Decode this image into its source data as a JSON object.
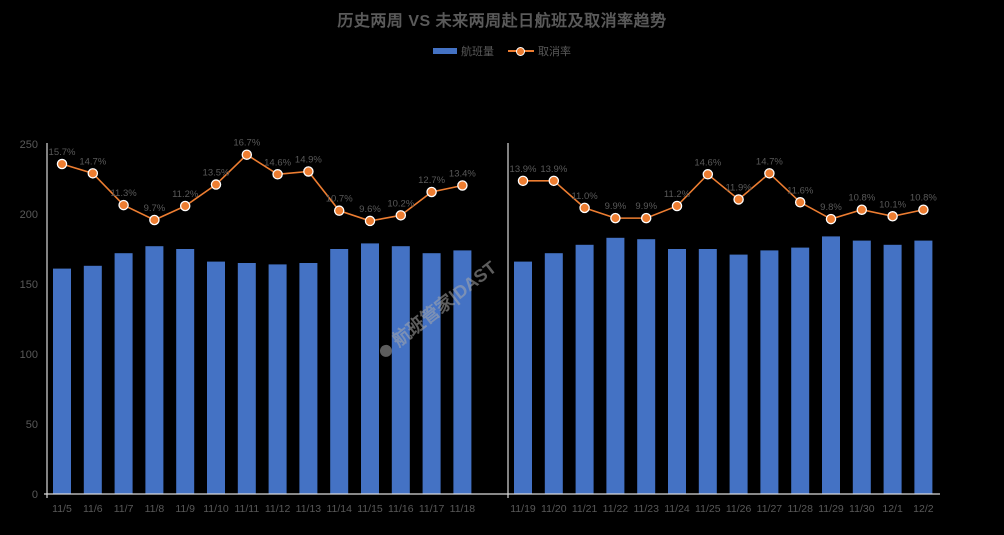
{
  "chart_data": {
    "type": "bar+line",
    "title": "历史两周 VS 未来两周赴日航班及取消率趋势",
    "legend": {
      "position": "top",
      "entries": [
        "航班量",
        "取消率"
      ]
    },
    "colors": {
      "bar": "#4472c4",
      "line": "#ed7d31",
      "text": "#595959",
      "axis": "#d9d9d9"
    },
    "y_axis": {
      "min": 0,
      "max": 250,
      "ticks": [
        0,
        50,
        100,
        150,
        200,
        250
      ]
    },
    "grid": false,
    "panels": [
      {
        "name": "历史两周",
        "categories": [
          "11/5",
          "11/6",
          "11/7",
          "11/8",
          "11/9",
          "11/10",
          "11/11",
          "11/12",
          "11/13",
          "11/14",
          "11/15",
          "11/16",
          "11/17",
          "11/18"
        ],
        "series": [
          {
            "name": "航班量",
            "type": "bar",
            "values": [
              161,
              163,
              172,
              177,
              175,
              166,
              165,
              164,
              165,
              175,
              179,
              177,
              172,
              174
            ]
          },
          {
            "name": "取消率",
            "type": "line",
            "unit": "%",
            "values": [
              15.7,
              14.7,
              11.3,
              9.7,
              11.2,
              13.5,
              16.7,
              14.6,
              14.9,
              10.7,
              9.6,
              10.2,
              12.7,
              13.4
            ],
            "labels": [
              "15.7%",
              "14.7%",
              "11.3%",
              "9.7%",
              "11.2%",
              "13.5%",
              "16.7%",
              "14.6%",
              "14.9%",
              "10.7%",
              "9.6%",
              "10.2%",
              "12.7%",
              "13.4%"
            ]
          }
        ]
      },
      {
        "name": "未来两周",
        "categories": [
          "11/19",
          "11/20",
          "11/21",
          "11/22",
          "11/23",
          "11/24",
          "11/25",
          "11/26",
          "11/27",
          "11/28",
          "11/29",
          "11/30",
          "12/1",
          "12/2"
        ],
        "series": [
          {
            "name": "航班量",
            "type": "bar",
            "values": [
              166,
              172,
              178,
              183,
              182,
              175,
              175,
              171,
              174,
              176,
              184,
              181,
              178,
              181
            ]
          },
          {
            "name": "取消率",
            "type": "line",
            "unit": "%",
            "values": [
              13.9,
              13.9,
              11.0,
              9.9,
              9.9,
              11.2,
              14.6,
              11.9,
              14.7,
              11.6,
              9.8,
              10.8,
              10.1,
              10.8
            ],
            "labels": [
              "13.9%",
              "13.9%",
              "11.0%",
              "9.9%",
              "9.9%",
              "11.2%",
              "14.6%",
              "11.9%",
              "14.7%",
              "11.6%",
              "9.8%",
              "10.8%",
              "10.1%",
              "10.8%"
            ]
          }
        ]
      }
    ]
  },
  "legend": {
    "bar_label": "航班量",
    "line_label": "取消率"
  },
  "watermark": "航班管家|DAST"
}
